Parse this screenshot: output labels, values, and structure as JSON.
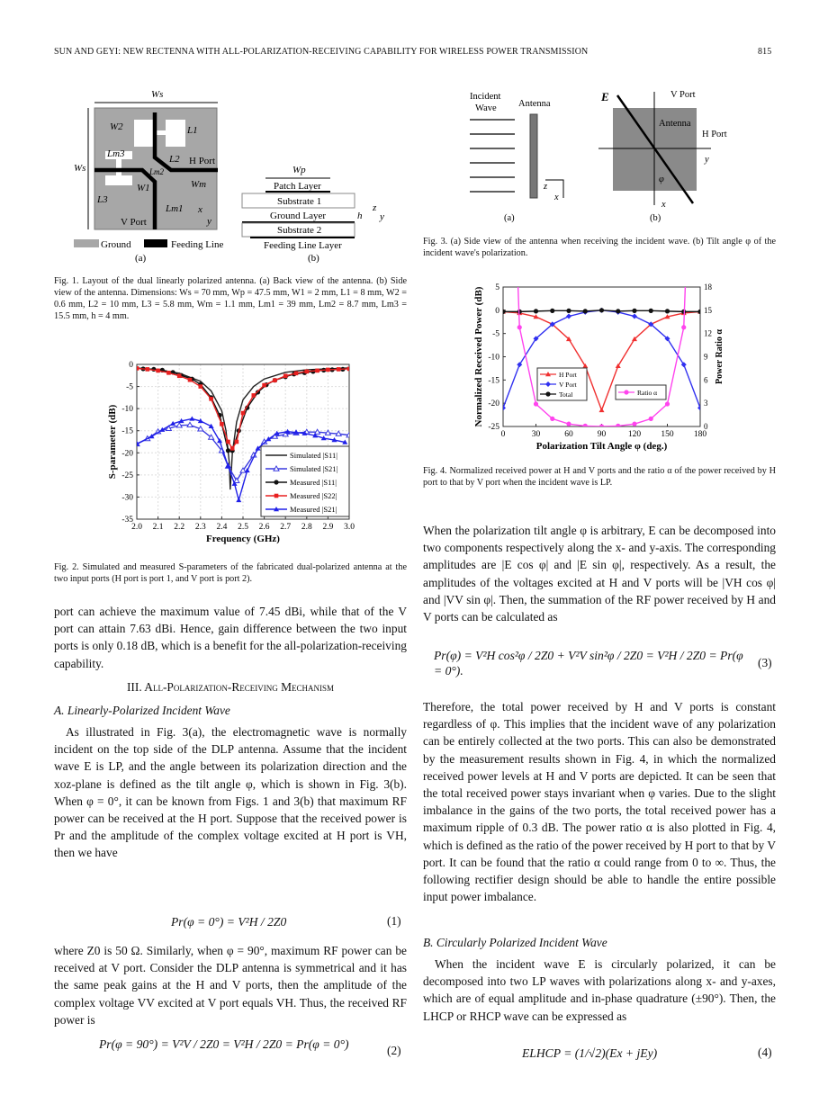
{
  "header": {
    "running_title": "SUN AND GEYI: NEW RECTENNA WITH ALL-POLARIZATION-RECEIVING CAPABILITY FOR WIRELESS POWER TRANSMISSION",
    "page_number": "815"
  },
  "fig1": {
    "labels": {
      "ws_top": "Ws",
      "ws_left": "Ws",
      "w2": "W2",
      "l1": "L1",
      "lm3": "Lm3",
      "l2": "L2",
      "h_port": "H Port",
      "lm2": "Lm2",
      "w1": "W1",
      "wm": "Wm",
      "l3": "L3",
      "lm1": "Lm1",
      "v_port": "V Port",
      "x": "x",
      "y": "y",
      "legend_ground": "Ground",
      "legend_feed": "Feeding Line",
      "sub_a": "(a)",
      "wp": "Wp",
      "patch": "Patch Layer",
      "sub1": "Substrate 1",
      "ground_layer": "Ground Layer",
      "h": "h",
      "sub2": "Substrate 2",
      "feed_layer": "Feeding Line Layer",
      "z": "z",
      "sub_b": "(b)"
    },
    "caption": "Fig. 1.  Layout of the dual linearly polarized antenna. (a) Back view of the antenna. (b) Side view of the antenna. Dimensions: Ws = 70 mm, Wp = 47.5 mm, W1 = 2 mm, L1 = 8 mm, W2 = 0.6 mm, L2 = 10 mm, L3 = 5.8 mm, Wm = 1.1 mm, Lm1 = 39 mm, Lm2 = 8.7 mm, Lm3 = 15.5 mm, h = 4 mm."
  },
  "fig3": {
    "labels": {
      "incident": "Incident",
      "wave": "Wave",
      "antenna_a": "Antenna",
      "z": "z",
      "x_a": "x",
      "sub_a": "(a)",
      "e": "E",
      "v_port": "V Port",
      "antenna_b": "Antenna",
      "h_port": "H Port",
      "y": "y",
      "phi": "φ",
      "x_b": "x",
      "sub_b": "(b)"
    },
    "caption": "Fig. 3.   (a) Side view of the antenna when receiving the incident wave. (b) Tilt angle φ of the incident wave's polarization."
  },
  "fig2": {
    "caption": "Fig. 2.   Simulated and measured S-parameters of the fabricated dual-polarized antenna at the two input ports (H port is port 1, and V port is port 2)."
  },
  "fig4": {
    "caption": "Fig. 4.   Normalized received power at H and V ports and the ratio α of the power received by H port to that by V port when the incident wave is LP."
  },
  "chart_data": [
    {
      "type": "line",
      "xlabel": "Frequency (GHz)",
      "ylabel": "S-parameter (dB)",
      "xlim": [
        2.0,
        3.0
      ],
      "ylim": [
        -35,
        0
      ],
      "xticks": [
        "2.0",
        "2.1",
        "2.2",
        "2.3",
        "2.4",
        "2.5",
        "2.6",
        "2.7",
        "2.8",
        "2.9",
        "3.0"
      ],
      "yticks": [
        "0",
        "-5",
        "-10",
        "-15",
        "-20",
        "-25",
        "-30",
        "-35"
      ],
      "grid": true,
      "legend_position": "bottom-right",
      "series": [
        {
          "name": "Simulated |S11|",
          "color": "#222222",
          "marker": "none",
          "x": [
            2.0,
            2.1,
            2.2,
            2.3,
            2.35,
            2.4,
            2.42,
            2.435,
            2.44,
            2.45,
            2.47,
            2.5,
            2.55,
            2.6,
            2.7,
            2.8,
            2.9,
            3.0
          ],
          "y": [
            -0.8,
            -1.2,
            -2.0,
            -3.8,
            -6.0,
            -10.5,
            -15,
            -22,
            -28.3,
            -20,
            -13,
            -8,
            -5,
            -3.3,
            -1.8,
            -1.2,
            -1.0,
            -0.8
          ]
        },
        {
          "name": "Simulated |S21|",
          "color": "#3a3adf",
          "marker": "open-triangle",
          "x": [
            2.0,
            2.05,
            2.1,
            2.15,
            2.2,
            2.25,
            2.3,
            2.35,
            2.4,
            2.43,
            2.47,
            2.5,
            2.55,
            2.6,
            2.65,
            2.7,
            2.75,
            2.8,
            2.85,
            2.9,
            2.95,
            3.0
          ],
          "y": [
            -18,
            -16.8,
            -15.2,
            -14.5,
            -13.8,
            -13.7,
            -14.6,
            -16.5,
            -19.5,
            -23,
            -26.3,
            -24,
            -20.5,
            -17.5,
            -16.3,
            -15.8,
            -15.5,
            -15.3,
            -15.3,
            -15.5,
            -15.7,
            -16
          ]
        },
        {
          "name": "Measured |S11|",
          "color": "#111111",
          "marker": "circle",
          "x": [
            2.03,
            2.08,
            2.12,
            2.17,
            2.21,
            2.26,
            2.3,
            2.35,
            2.39,
            2.43,
            2.45,
            2.48,
            2.52,
            2.57,
            2.61,
            2.65,
            2.7,
            2.74,
            2.79,
            2.83,
            2.88,
            2.92,
            2.97
          ],
          "y": [
            -1.0,
            -1.1,
            -1.3,
            -1.8,
            -2.5,
            -3.3,
            -4.5,
            -7.5,
            -11.5,
            -19.5,
            -19.5,
            -15,
            -9.8,
            -6.3,
            -4.6,
            -3.6,
            -2.8,
            -2.2,
            -1.9,
            -1.6,
            -1.3,
            -1.2,
            -1.1
          ]
        },
        {
          "name": "Measured |S22|",
          "color": "#e82020",
          "marker": "square",
          "x": [
            2.0,
            2.05,
            2.1,
            2.15,
            2.2,
            2.25,
            2.3,
            2.35,
            2.4,
            2.43,
            2.45,
            2.47,
            2.5,
            2.55,
            2.6,
            2.65,
            2.7,
            2.75,
            2.8,
            2.85,
            2.9,
            2.95,
            3.0
          ],
          "y": [
            -0.9,
            -1.1,
            -1.4,
            -1.9,
            -2.6,
            -3.5,
            -5,
            -7.8,
            -13.5,
            -17.5,
            -19,
            -17.5,
            -11,
            -7,
            -4.7,
            -3.6,
            -2.6,
            -2.0,
            -1.6,
            -1.4,
            -1.2,
            -1.1,
            -1.0
          ]
        },
        {
          "name": "Measured |S21|",
          "color": "#2020e8",
          "marker": "triangle",
          "x": [
            2.0,
            2.07,
            2.12,
            2.17,
            2.21,
            2.26,
            2.3,
            2.35,
            2.39,
            2.43,
            2.46,
            2.48,
            2.52,
            2.57,
            2.62,
            2.66,
            2.71,
            2.75,
            2.79,
            2.84,
            2.88,
            2.93,
            2.98
          ],
          "y": [
            -18,
            -16.3,
            -14.8,
            -13.4,
            -12.8,
            -12.3,
            -12.8,
            -14,
            -17.3,
            -23,
            -27,
            -30.7,
            -24,
            -19,
            -16.9,
            -15.6,
            -15.2,
            -15.4,
            -15.6,
            -16.1,
            -16.7,
            -17.1,
            -17.6
          ]
        }
      ]
    },
    {
      "type": "line",
      "xlabel": "Polarization Tilt Angle φ (deg.)",
      "ylabel": "Normalized Received Power (dB)",
      "y2label": "Power Ratio α",
      "xlim": [
        0,
        180
      ],
      "ylim": [
        -25,
        5
      ],
      "y2lim": [
        0,
        18
      ],
      "xticks": [
        "0",
        "30",
        "60",
        "90",
        "120",
        "150",
        "180"
      ],
      "yticks": [
        "5",
        "0",
        "-5",
        "-10",
        "-15",
        "-20",
        "-25"
      ],
      "y2ticks": [
        "18",
        "15",
        "12",
        "9",
        "6",
        "3",
        "0"
      ],
      "grid": false,
      "legend_position": "center-left",
      "x": [
        0,
        15,
        30,
        45,
        60,
        75,
        90,
        105,
        120,
        135,
        150,
        165,
        180
      ],
      "series": [
        {
          "name": "H Port",
          "color": "#f03030",
          "marker": "triangle",
          "axis": "left",
          "y": [
            -0.3,
            -0.6,
            -1.4,
            -3.0,
            -6.2,
            -12,
            -21.5,
            -12,
            -6.2,
            -3.0,
            -1.4,
            -0.6,
            -0.3
          ]
        },
        {
          "name": "V Port",
          "color": "#3030f0",
          "marker": "diamond",
          "axis": "left",
          "y": [
            -21,
            -11.7,
            -6.1,
            -3.0,
            -1.3,
            -0.4,
            0,
            -0.4,
            -1.3,
            -3.0,
            -6.1,
            -11.7,
            -21
          ]
        },
        {
          "name": "Total",
          "color": "#111111",
          "marker": "circle",
          "axis": "left",
          "y": [
            -0.3,
            -0.3,
            -0.2,
            -0.1,
            -0.1,
            -0.2,
            0,
            -0.2,
            -0.1,
            -0.1,
            -0.2,
            -0.3,
            -0.3
          ]
        },
        {
          "name": "Ratio α",
          "color": "#ff44ee",
          "marker": "circle",
          "axis": "right",
          "y": [
            null,
            12.8,
            2.9,
            1.0,
            0.33,
            0.07,
            0,
            0.07,
            0.33,
            1.0,
            2.9,
            12.8,
            null
          ]
        }
      ]
    }
  ],
  "left": {
    "p1": "port can achieve the maximum value of 7.45 dBi, while that of the V port can attain 7.63 dBi. Hence, gain difference between the two input ports is only 0.18 dB, which is a benefit for the all-polarization-receiving capability.",
    "section": "III. All-Polarization-Receiving Mechanism",
    "subsection": "A. Linearly-Polarized Incident Wave",
    "p2": "As illustrated in Fig. 3(a), the electromagnetic wave is normally incident on the top side of the DLP antenna. Assume that the incident wave E is LP, and the angle between its polarization direction and the xoz-plane is defined as the tilt angle φ, which is shown in Fig. 3(b). When φ = 0°, it can be known from Figs. 1 and 3(b) that maximum RF power can be received at the H port. Suppose that the received power is Pr and the amplitude of the complex voltage excited at H port is VH, then we have",
    "eq1": "Pr(φ = 0°) = V²H / 2Z0",
    "eq1_num": "(1)",
    "p3": "where Z0 is 50 Ω. Similarly, when φ = 90°, maximum RF power can be received at V port. Consider the DLP antenna is symmetrical and it has the same peak gains at the H and V ports, then the amplitude of the complex voltage VV excited at V port equals VH. Thus, the received RF power is",
    "eq2": "Pr(φ = 90°) = V²V / 2Z0 = V²H / 2Z0 = Pr(φ = 0°)",
    "eq2_num": "(2)"
  },
  "right": {
    "p1": "When the polarization tilt angle φ is arbitrary, E can be decomposed into two components respectively along the x- and y-axis. The corresponding amplitudes are |E cos φ| and |E sin φ|, respectively. As a result, the amplitudes of the voltages excited at H and V ports will be |VH cos φ| and |VV sin φ|. Then, the summation of the RF power received by H and V ports can be calculated as",
    "eq3": "Pr(φ) = V²H cos²φ / 2Z0 + V²V sin²φ / 2Z0 = V²H / 2Z0 = Pr(φ = 0°).",
    "eq3_num": "(3)",
    "p2": "Therefore, the total power received by H and V ports is constant regardless of φ. This implies that the incident wave of any polarization can be entirely collected at the two ports. This can also be demonstrated by the measurement results shown in Fig. 4, in which the normalized received power levels at H and V ports are depicted. It can be seen that the total received power stays invariant when φ varies. Due to the slight imbalance in the gains of the two ports, the total received power has a maximum ripple of 0.3 dB. The power ratio α is also plotted in Fig. 4, which is defined as the ratio of the power received by H port to that by V port. It can be found that the ratio α could range from 0 to ∞. Thus, the following rectifier design should be able to handle the entire possible input power imbalance.",
    "subsection": "B. Circularly Polarized Incident Wave",
    "p3": "When the incident wave E is circularly polarized, it can be decomposed into two LP waves with polarizations along x- and y-axes, which are of equal amplitude and in-phase quadrature (±90°). Then, the LHCP or RHCP wave can be expressed as",
    "eq4": "ELHCP = (1/√2)(Ex + jEy)",
    "eq4_num": "(4)"
  }
}
